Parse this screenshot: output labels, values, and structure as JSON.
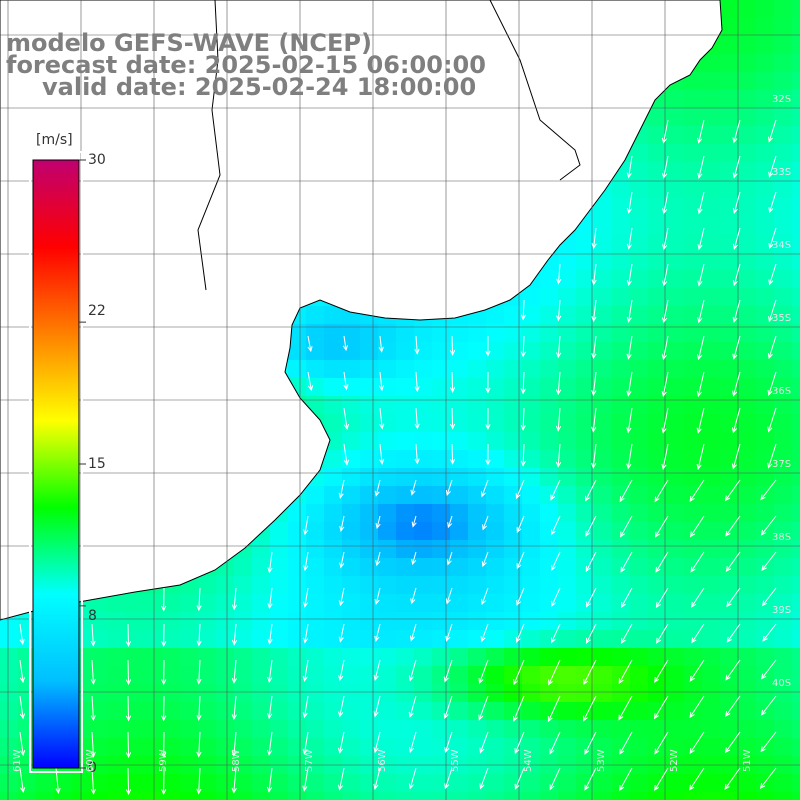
{
  "title": {
    "line1": "modelo GEFS-WAVE (NCEP)",
    "line2": "forecast date: 2025-02-15 06:00:00",
    "line3": "valid date: 2025-02-24 18:00:00"
  },
  "colorbar": {
    "unit": "[m/s]",
    "ticks": [
      "30",
      "22",
      "15",
      "8",
      "0"
    ],
    "tick_values": [
      30,
      22,
      15,
      8,
      0
    ],
    "range": [
      0,
      30
    ],
    "colors": [
      "#0000ff",
      "#00bfff",
      "#00ffff",
      "#00ff00",
      "#ffff00",
      "#ff8000",
      "#ff0000",
      "#c00070"
    ]
  },
  "map": {
    "lat_labels": [
      "32S",
      "33S",
      "34S",
      "35S",
      "36S",
      "37S",
      "38S",
      "39S",
      "40S"
    ],
    "lon_labels": [
      "61W",
      "60W",
      "59W",
      "58W",
      "57W",
      "56W",
      "55W",
      "54W",
      "53W",
      "52W",
      "51W"
    ],
    "land_color": "#ffffff",
    "coast_color": "#000000",
    "grid_color": "#555555"
  }
}
